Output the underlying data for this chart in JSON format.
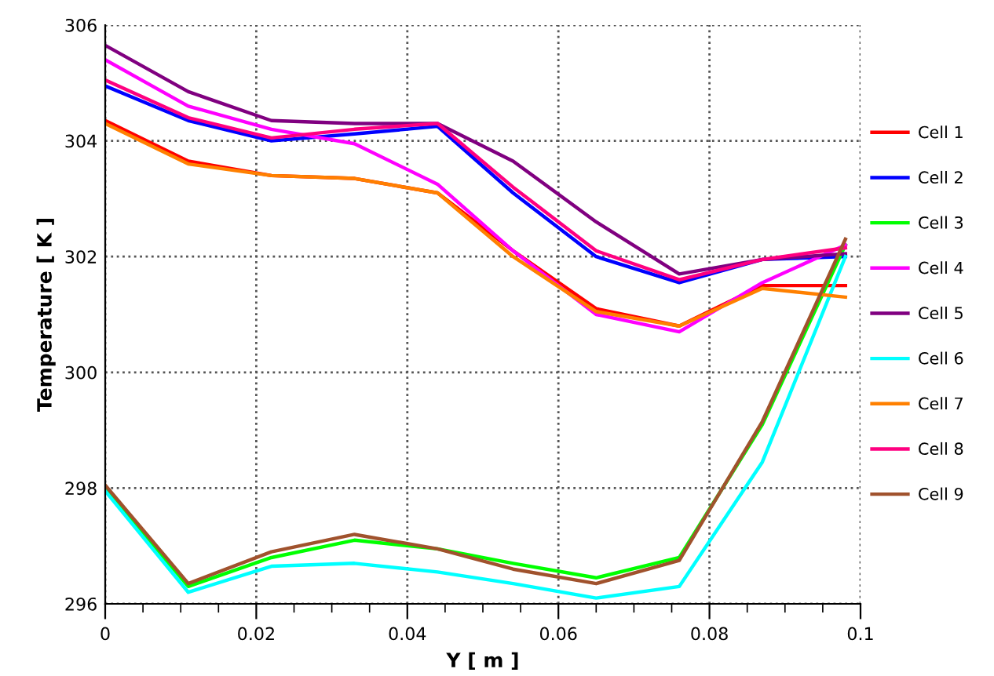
{
  "chart_data": {
    "type": "line",
    "xlabel": "Y [ m ]",
    "ylabel": "Temperature [ K ]",
    "x": [
      0,
      0.011,
      0.022,
      0.033,
      0.044,
      0.054,
      0.065,
      0.076,
      0.087,
      0.098
    ],
    "xlim": [
      0,
      0.1
    ],
    "xticks": [
      0,
      0.02,
      0.04,
      0.06,
      0.08,
      {
        "value": 0.1,
        "label": "0.1"
      }
    ],
    "ylim": [
      296,
      306
    ],
    "yticks": [
      296,
      298,
      300,
      302,
      304,
      306
    ],
    "grid": true,
    "legend": "right",
    "marker": "none",
    "line_style": "solid",
    "series": [
      {
        "name": "Cell 1",
        "color": "#ff0000",
        "values": [
          304.35,
          303.65,
          303.4,
          303.35,
          303.1,
          302.1,
          301.1,
          300.8,
          301.5,
          301.5
        ]
      },
      {
        "name": "Cell 2",
        "color": "#0000ff",
        "values": [
          304.95,
          304.35,
          304.0,
          304.12,
          304.25,
          303.1,
          302.0,
          301.55,
          301.95,
          302.0
        ]
      },
      {
        "name": "Cell 3",
        "color": "#00ff00",
        "values": [
          298.0,
          296.3,
          296.8,
          297.1,
          296.95,
          296.7,
          296.45,
          296.8,
          299.1,
          302.2
        ]
      },
      {
        "name": "Cell 4",
        "color": "#ff00ff",
        "values": [
          305.4,
          304.6,
          304.2,
          303.95,
          303.25,
          302.1,
          301.0,
          300.7,
          301.55,
          302.2
        ]
      },
      {
        "name": "Cell 5",
        "color": "#800080",
        "values": [
          305.65,
          304.85,
          304.35,
          304.3,
          304.3,
          303.65,
          302.6,
          301.7,
          301.95,
          302.05
        ]
      },
      {
        "name": "Cell 6",
        "color": "#00ffff",
        "values": [
          297.95,
          296.2,
          296.65,
          296.7,
          296.55,
          296.35,
          296.1,
          296.3,
          298.45,
          302.0
        ]
      },
      {
        "name": "Cell 7",
        "color": "#ff8000",
        "values": [
          304.3,
          303.6,
          303.4,
          303.35,
          303.1,
          302.0,
          301.05,
          300.8,
          301.45,
          301.3
        ]
      },
      {
        "name": "Cell 8",
        "color": "#ff0080",
        "values": [
          305.05,
          304.4,
          304.05,
          304.2,
          304.3,
          303.2,
          302.1,
          301.6,
          301.95,
          302.15
        ]
      },
      {
        "name": "Cell 9",
        "color": "#a0522d",
        "values": [
          298.05,
          296.35,
          296.9,
          297.2,
          296.95,
          296.6,
          296.35,
          296.75,
          299.15,
          302.3
        ]
      }
    ]
  }
}
